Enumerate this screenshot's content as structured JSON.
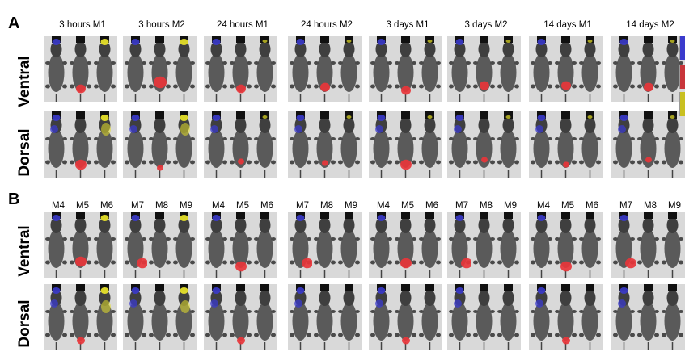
{
  "panels": [
    {
      "letter": "A"
    },
    {
      "letter": "B"
    }
  ],
  "row_labels": [
    "Ventral",
    "Dorsal"
  ],
  "panel_a_columns": [
    "3 hours M1",
    "3 hours M2",
    "24 hours M1",
    "24 hours M2",
    "3 days M1",
    "3 days M2",
    "14 days M1",
    "14 days M2"
  ],
  "panel_b_columns": [
    [
      "M4",
      "M5",
      "M6"
    ],
    [
      "M7",
      "M8",
      "M9"
    ],
    [
      "M4",
      "M5",
      "M6"
    ],
    [
      "M7",
      "M8",
      "M9"
    ],
    [
      "M4",
      "M5",
      "M6"
    ],
    [
      "M7",
      "M8",
      "M9"
    ],
    [
      "M4",
      "M5",
      "M6"
    ],
    [
      "M7",
      "M8",
      "M9"
    ]
  ],
  "colors": {
    "blue_signal": "#3b3bcc",
    "red_signal": "#e8353a",
    "yellow_signal": "#e6e02a",
    "mouse_body": "#5a5a5a",
    "background_tile": "#d9d9d9"
  },
  "colorbar_colors": [
    "#3b3bcc",
    "#c8353a",
    "#c9c021"
  ]
}
